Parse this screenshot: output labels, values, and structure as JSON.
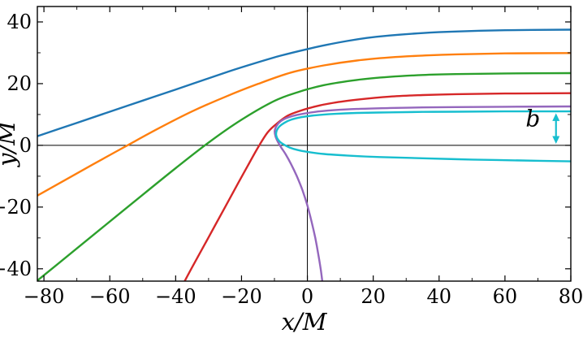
{
  "figure_title": "photon-trajectories-around-black-hole",
  "chart_data": {
    "type": "line",
    "title": "",
    "xlabel": "x/M",
    "ylabel": "y/M",
    "xlim": [
      -82,
      80
    ],
    "ylim": [
      -44,
      45
    ],
    "xticks": [
      -80,
      -60,
      -40,
      -20,
      0,
      20,
      40,
      60,
      80
    ],
    "yticks": [
      -40,
      -20,
      0,
      20,
      40
    ],
    "minor_tick_step": 10,
    "grid": false,
    "zero_axes": true,
    "legend": "none",
    "series": [
      {
        "name": "trajectory-1-blue",
        "color": "#1f77b4",
        "points": [
          [
            80,
            37.5
          ],
          [
            60,
            37.3
          ],
          [
            45,
            36.9
          ],
          [
            35,
            36.4
          ],
          [
            25,
            35.6
          ],
          [
            18,
            34.8
          ],
          [
            12,
            33.8
          ],
          [
            6,
            32.6
          ],
          [
            0,
            31.2
          ],
          [
            -8,
            29.1
          ],
          [
            -16,
            26.6
          ],
          [
            -24,
            23.9
          ],
          [
            -32,
            21.0
          ],
          [
            -40,
            18.1
          ],
          [
            -50,
            14.5
          ],
          [
            -60,
            10.9
          ],
          [
            -70,
            7.3
          ],
          [
            -83,
            2.6
          ]
        ]
      },
      {
        "name": "trajectory-2-orange",
        "color": "#ff7f0e",
        "points": [
          [
            80,
            29.9
          ],
          [
            60,
            29.8
          ],
          [
            45,
            29.5
          ],
          [
            35,
            29.1
          ],
          [
            25,
            28.5
          ],
          [
            15,
            27.5
          ],
          [
            5,
            25.9
          ],
          [
            -5,
            23.6
          ],
          [
            -15,
            19.9
          ],
          [
            -25,
            15.7
          ],
          [
            -35,
            11.0
          ],
          [
            -45,
            5.6
          ],
          [
            -55,
            -0.2
          ],
          [
            -65,
            -6.1
          ],
          [
            -83,
            -16.9
          ]
        ]
      },
      {
        "name": "trajectory-3-green",
        "color": "#2ca02c",
        "points": [
          [
            80,
            23.4
          ],
          [
            60,
            23.3
          ],
          [
            45,
            23.1
          ],
          [
            35,
            22.8
          ],
          [
            25,
            22.2
          ],
          [
            15,
            21.2
          ],
          [
            5,
            19.5
          ],
          [
            -3,
            17.2
          ],
          [
            -10,
            14.4
          ],
          [
            -20,
            8.3
          ],
          [
            -30,
            0.9
          ],
          [
            -40,
            -7.4
          ],
          [
            -50,
            -16.0
          ],
          [
            -60,
            -24.7
          ],
          [
            -70,
            -33.4
          ],
          [
            -83,
            -44.7
          ]
        ]
      },
      {
        "name": "trajectory-4-red",
        "color": "#d62728",
        "points": [
          [
            80,
            16.9
          ],
          [
            60,
            16.8
          ],
          [
            45,
            16.6
          ],
          [
            35,
            16.3
          ],
          [
            25,
            15.8
          ],
          [
            15,
            14.8
          ],
          [
            8,
            13.8
          ],
          [
            2,
            12.5
          ],
          [
            -3,
            10.9
          ],
          [
            -6,
            9.6
          ],
          [
            -9,
            7.3
          ],
          [
            -12,
            4.3
          ],
          [
            -15,
            -0.7
          ],
          [
            -18,
            -6.4
          ],
          [
            -21,
            -12.2
          ],
          [
            -25,
            -20.0
          ],
          [
            -30,
            -29.8
          ],
          [
            -35,
            -39.5
          ],
          [
            -38,
            -45.5
          ]
        ]
      },
      {
        "name": "trajectory-5-purple",
        "color": "#9467bd",
        "points": [
          [
            80,
            12.6
          ],
          [
            60,
            12.5
          ],
          [
            45,
            12.4
          ],
          [
            35,
            12.3
          ],
          [
            25,
            12.1
          ],
          [
            15,
            11.8
          ],
          [
            8,
            11.4
          ],
          [
            2,
            10.8
          ],
          [
            -3,
            9.9
          ],
          [
            -6,
            9.0
          ],
          [
            -8,
            7.9
          ],
          [
            -9.3,
            6.4
          ],
          [
            -9.9,
            4.8
          ],
          [
            -9.7,
            3.0
          ],
          [
            -9.0,
            1.2
          ],
          [
            -8.0,
            -0.6
          ],
          [
            -6.6,
            -2.9
          ],
          [
            -5.0,
            -6.0
          ],
          [
            -3.2,
            -10.0
          ],
          [
            -1.5,
            -14.5
          ],
          [
            0,
            -19.5
          ],
          [
            1.3,
            -24.8
          ],
          [
            2.4,
            -30.0
          ],
          [
            3.3,
            -35.2
          ],
          [
            4.1,
            -40.5
          ],
          [
            4.7,
            -45.5
          ]
        ]
      },
      {
        "name": "trajectory-6-cyan",
        "color": "#17becf",
        "points": [
          [
            80,
            11.0
          ],
          [
            60,
            11.0
          ],
          [
            45,
            10.9
          ],
          [
            35,
            10.85
          ],
          [
            25,
            10.7
          ],
          [
            15,
            10.5
          ],
          [
            8,
            10.2
          ],
          [
            2,
            9.7
          ],
          [
            -2,
            9.1
          ],
          [
            -5,
            8.3
          ],
          [
            -7,
            7.3
          ],
          [
            -8.5,
            6.1
          ],
          [
            -9.3,
            4.8
          ],
          [
            -9.5,
            3.6
          ],
          [
            -9.2,
            2.4
          ],
          [
            -8.4,
            1.2
          ],
          [
            -7.1,
            0.2
          ],
          [
            -5.4,
            -0.7
          ],
          [
            -3,
            -1.5
          ],
          [
            0,
            -2.1
          ],
          [
            5,
            -2.8
          ],
          [
            12,
            -3.3
          ],
          [
            22,
            -3.8
          ],
          [
            35,
            -4.2
          ],
          [
            50,
            -4.6
          ],
          [
            65,
            -4.9
          ],
          [
            80,
            -5.2
          ]
        ]
      }
    ],
    "annotation": {
      "label": "b",
      "arrow_x": 75.5,
      "arrow_y_from": 0.5,
      "arrow_y_to": 10.4,
      "color": "#17becf",
      "label_x": 68.5,
      "label_y": 8.5
    }
  }
}
